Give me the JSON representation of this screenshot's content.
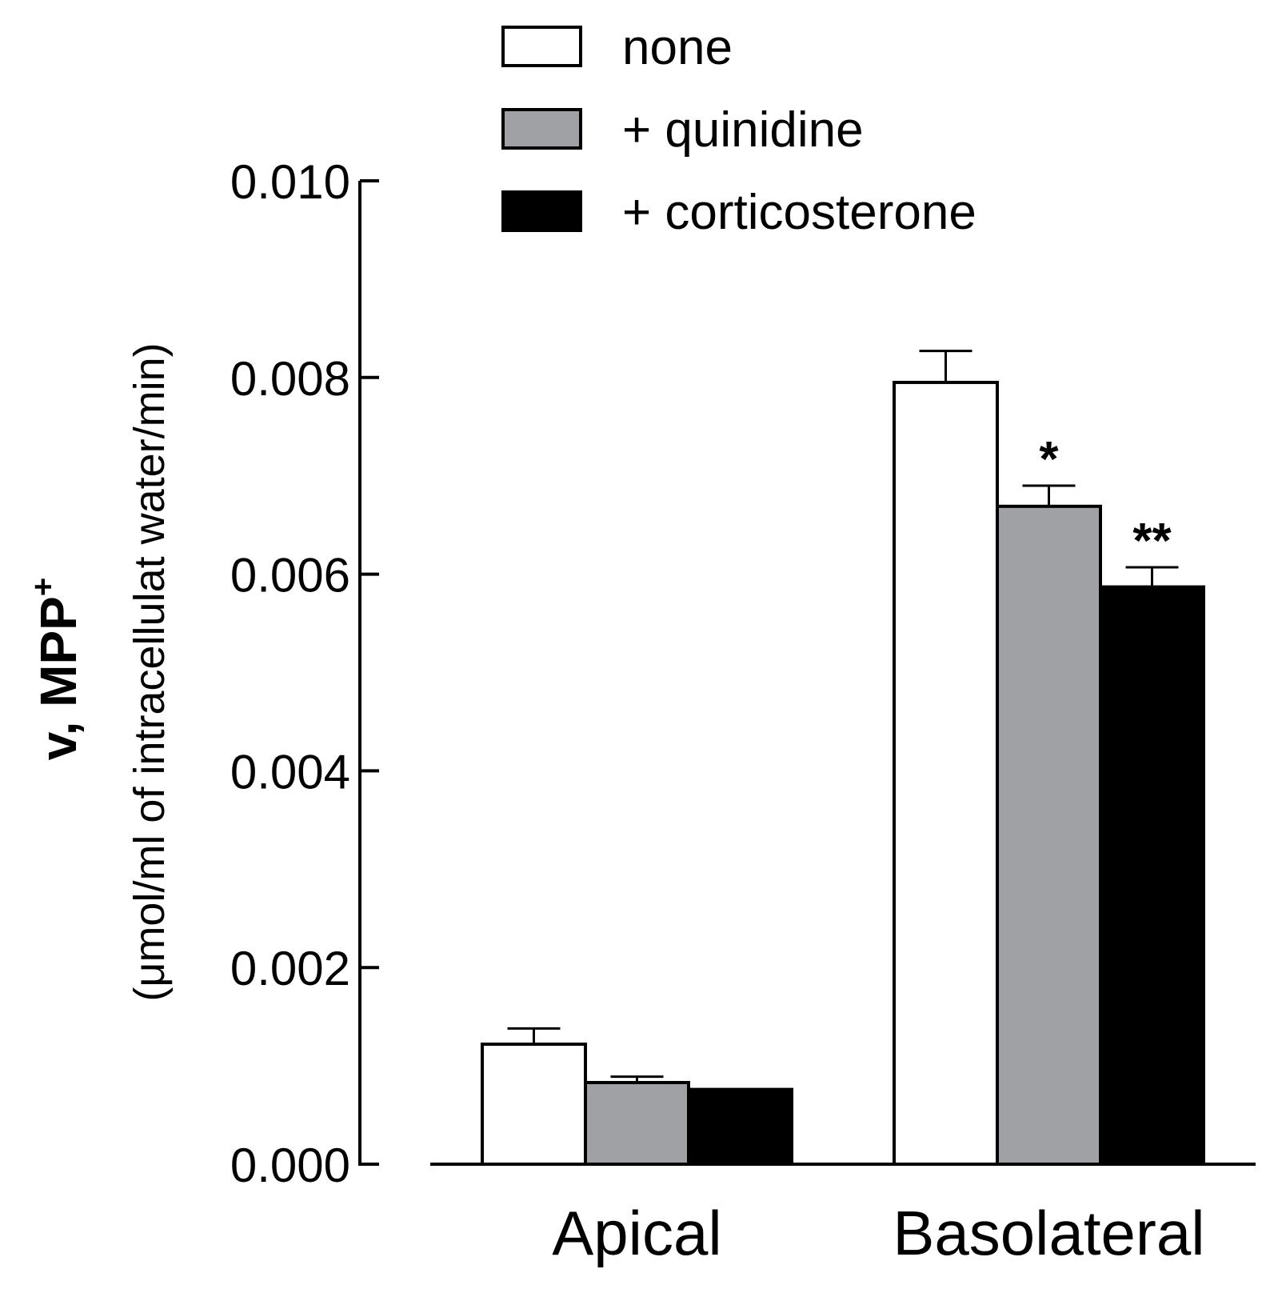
{
  "chart_data": {
    "type": "bar",
    "title": "",
    "xlabel": "",
    "ylabel": {
      "main": "v, MPP",
      "superscript": "+",
      "sub": "(μmol/ml of intracellulat water/min)"
    },
    "ylim": [
      0,
      0.01
    ],
    "yticks": [
      "0.000",
      "0.002",
      "0.004",
      "0.006",
      "0.008",
      "0.010"
    ],
    "ytick_values": [
      0,
      0.002,
      0.004,
      0.006,
      0.008,
      0.01
    ],
    "categories": [
      "Apical",
      "Basolateral"
    ],
    "series": [
      {
        "name": "none",
        "color": "#ffffff",
        "values": [
          0.00122,
          0.00795
        ],
        "errors": [
          0.00016,
          0.00032
        ],
        "annotations": [
          "",
          ""
        ]
      },
      {
        "name": "+ quinidine",
        "color": "#a0a1a4",
        "values": [
          0.00083,
          0.00669
        ],
        "errors": [
          6e-05,
          0.00021
        ],
        "annotations": [
          "",
          "*"
        ]
      },
      {
        "name": "+ corticosterone",
        "color": "#000000",
        "values": [
          0.00076,
          0.00587
        ],
        "errors": [
          0.0,
          0.0002
        ],
        "annotations": [
          "",
          "**"
        ]
      }
    ],
    "legend_position": "top"
  }
}
